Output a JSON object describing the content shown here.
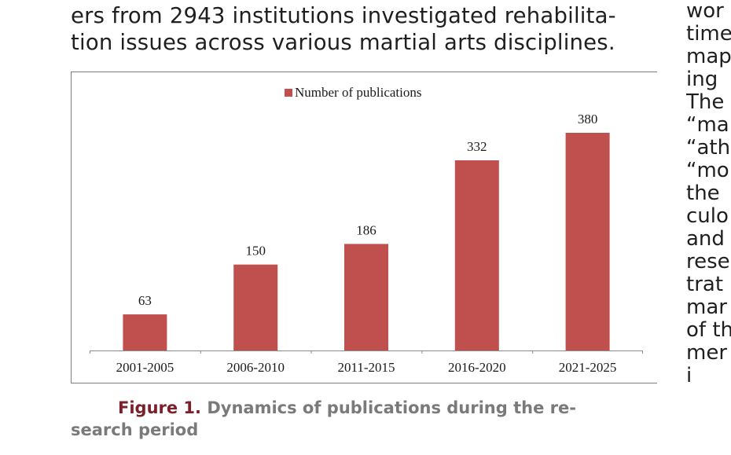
{
  "paragraph": {
    "line1": "ers from 2943 institutions investigated rehabilita-",
    "line2": "tion issues across various martial arts disciplines."
  },
  "right_column": {
    "lines": [
      "wor",
      "time",
      "map",
      "ing",
      "The",
      "“ma",
      "“ath",
      "“mo",
      "the",
      "culo",
      "and",
      "rese",
      "trat",
      "mar",
      "of th",
      "mer",
      "i"
    ]
  },
  "figure": {
    "label": "Figure 1.",
    "caption_line1": " Dynamics of publications during the re-",
    "caption_line2": "search period"
  },
  "chart_data": {
    "type": "bar",
    "categories": [
      "2001-2005",
      "2006-2010",
      "2011-2015",
      "2016-2020",
      "2021-2025"
    ],
    "series": [
      {
        "name": "Number of publications",
        "values": [
          63,
          150,
          186,
          332,
          380
        ]
      }
    ],
    "data_labels": [
      "63",
      "150",
      "186",
      "332",
      "380"
    ],
    "legend": "top-center",
    "grid": false,
    "ylim": [
      0,
      380
    ],
    "colors": {
      "bar": "#c0504d",
      "axis": "#8c8c8c",
      "text": "#1a1a1a"
    }
  }
}
